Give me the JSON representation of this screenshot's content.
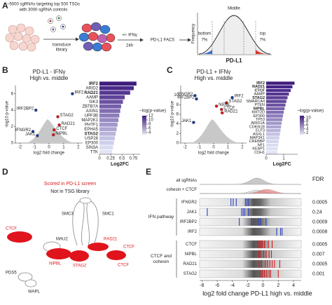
{
  "panel_labels": [
    "A",
    "B",
    "C",
    "D",
    "E"
  ],
  "panel_a": {
    "library_lines": [
      "~5000 sgRNAs targeting top 500 TSGs",
      "with 3000 sgRNA controls"
    ],
    "transduce": [
      "transduce",
      "library"
    ],
    "treatment": "+/- IFNγ",
    "time": "24h",
    "sort": "PD-L1 FACS",
    "y_label": "Frequency",
    "middle": "Middle",
    "bottom": "bottom",
    "bottom_pct": "7%",
    "top": "top",
    "top_pct": "7%",
    "x_label": "PD-L1"
  },
  "chart_data": [
    {
      "type": "scatter",
      "title": "PD-L1 - IFNγ",
      "subtitle": "High vs. middle",
      "x_label": "log2 fold change",
      "y_label": "-log10 p-value",
      "xlim": [
        -2.3,
        2.3
      ],
      "xticks": [
        -2,
        -1,
        0,
        1,
        2
      ],
      "ylim": [
        0,
        7
      ],
      "yticks": [
        0,
        2,
        4,
        6
      ],
      "points": [
        {
          "label": "IRF2",
          "x": 1.6,
          "y": 6.0,
          "color": "#1d3c96"
        },
        {
          "label": "IRF2BP2",
          "x": -0.9,
          "y": 4.0,
          "color": "#1d3c96"
        },
        {
          "label": "STAG2",
          "x": 0.6,
          "y": 3.2,
          "color": "#d7191c"
        },
        {
          "label": "RAD21",
          "x": 0.7,
          "y": 2.2,
          "color": "#d7191c"
        },
        {
          "label": "CTCF",
          "x": 0.35,
          "y": 1.6,
          "color": "#d7191c"
        },
        {
          "label": "IFNGR2",
          "x": -1.1,
          "y": 1.4,
          "color": "#1d3c96"
        },
        {
          "label": "JAK1",
          "x": -0.8,
          "y": 0.9,
          "color": "#1d3c96"
        },
        {
          "label": "NIPBL",
          "x": 0.3,
          "y": 1.0,
          "color": "#d7191c"
        }
      ]
    },
    {
      "type": "hbar",
      "x_label": "Log2FC",
      "xlim": [
        0,
        0.9
      ],
      "xticks": [
        0,
        0.25,
        0.5,
        0.75
      ],
      "categories": [
        "IRF2",
        "ARID2",
        "RAD21",
        "AAMP",
        "SIK3",
        "ZBTB7A",
        "AXIN1",
        "UPF3B",
        "MAP2K1",
        "PHTF1",
        "EPHA5",
        "STAG2",
        "USP28",
        "EP300",
        "SIN3A",
        "TTK"
      ],
      "values": [
        0.82,
        0.76,
        0.68,
        0.56,
        0.52,
        0.48,
        0.46,
        0.44,
        0.42,
        0.4,
        0.38,
        0.36,
        0.34,
        0.32,
        0.3,
        0.28
      ],
      "colors": [
        "#3f1d7d",
        "#4a2a8a",
        "#553792",
        "#60449a",
        "#6b52a2",
        "#7660aa",
        "#816eb2",
        "#8c7cba",
        "#978ac2",
        "#a298ca",
        "#ada6d2",
        "#b8b4da",
        "#c3c2e2",
        "#cecfe9",
        "#d9dcf0",
        "#e2e4f4"
      ],
      "label_colors": [
        "#1d3c96",
        "#222",
        "#d7191c",
        "#222",
        "#222",
        "#222",
        "#222",
        "#222",
        "#222",
        "#222",
        "#222",
        "#d7191c",
        "#222",
        "#222",
        "#222",
        "#222"
      ],
      "colorbar": {
        "title": "−log(p-value)",
        "lim": [
          3,
          12
        ],
        "ticks": [
          12,
          10,
          8,
          6,
          4
        ]
      }
    },
    {
      "type": "scatter",
      "title": "PD-L1 + IFNγ",
      "subtitle": "High vs. middle",
      "x_label": "log2 fold change",
      "y_label": "-log10 p-value",
      "xlim": [
        -2.3,
        2.3
      ],
      "xticks": [
        -2,
        -1,
        0,
        1,
        2
      ],
      "ylim": [
        0,
        12
      ],
      "yticks": [
        0,
        2,
        4,
        6,
        8,
        10
      ],
      "points": [
        {
          "label": "IFNGR2",
          "x": -1.3,
          "y": 9.9,
          "color": "#1d3c96"
        },
        {
          "label": "IRF2BP2",
          "x": -1.2,
          "y": 9.2,
          "color": "#1d3c96"
        },
        {
          "label": "IRF2",
          "x": 1.3,
          "y": 9.5,
          "color": "#1d3c96"
        },
        {
          "label": "STAG2",
          "x": 0.9,
          "y": 8.4,
          "color": "#d7191c"
        },
        {
          "label": "NIPBL",
          "x": 0.2,
          "y": 7.7,
          "color": "#d7191c"
        },
        {
          "label": "CTCF",
          "x": 0.55,
          "y": 7.0,
          "color": "#d7191c"
        },
        {
          "label": "RAD21",
          "x": 0.6,
          "y": 6.3,
          "color": "#d7191c"
        },
        {
          "label": "JAK1",
          "x": -1.4,
          "y": 4.3,
          "color": "#1d3c96"
        }
      ]
    },
    {
      "type": "hbar",
      "x_label": "Log2FC",
      "xlim": [
        0,
        1.8
      ],
      "xticks": [
        0,
        1
      ],
      "categories": [
        "IRF2",
        "RAD21",
        "CTCF",
        "AAMP",
        "STAG2",
        "SMARCA4",
        "PTEN",
        "NIPBL",
        "KMT2D",
        "EP300",
        "TP53",
        "ARID1A",
        "CDKN1B",
        "ELF3",
        "ASXL1",
        "MAP3K1",
        "CREBBP",
        "NF1",
        "KEAP1",
        "CDH1"
      ],
      "values": [
        1.62,
        1.5,
        1.4,
        1.3,
        1.22,
        1.15,
        1.1,
        1.05,
        1.0,
        0.96,
        0.92,
        0.88,
        0.85,
        0.82,
        0.78,
        0.75,
        0.72,
        0.69,
        0.66,
        0.63
      ],
      "colors": [
        "#3f1d7d",
        "#46258a",
        "#4e2d8e",
        "#553792",
        "#5c3e96",
        "#63469b",
        "#6b52a2",
        "#7660aa",
        "#816eb2",
        "#8c7cba",
        "#978ac2",
        "#a298ca",
        "#ada6d2",
        "#b8b4da",
        "#c3c2e2",
        "#cecfe9",
        "#d4d6ec",
        "#d9dcf0",
        "#dee0f2",
        "#e2e4f4"
      ],
      "label_colors": [
        "#1d3c96",
        "#d7191c",
        "#d7191c",
        "#222",
        "#d7191c",
        "#222",
        "#222",
        "#d7191c",
        "#222",
        "#222",
        "#222",
        "#222",
        "#222",
        "#222",
        "#222",
        "#222",
        "#222",
        "#222",
        "#222",
        "#222"
      ],
      "colorbar": {
        "title": "−log(p-value)",
        "lim": [
          1,
          11
        ],
        "ticks": [
          10,
          8,
          6,
          4,
          2
        ]
      }
    },
    {
      "type": "strip",
      "x_label": "log2 fold change PD-L1 high vs. middle",
      "fdr_title": "FDR",
      "xlim": [
        -8.3,
        5
      ],
      "xticks": [
        -8,
        -6,
        -4,
        -2,
        0,
        2,
        4
      ],
      "groups": [
        {
          "lines": [
            "IFN pathway"
          ]
        },
        {
          "lines": [
            "CTCF and",
            "cohesin"
          ]
        }
      ],
      "rows": [
        {
          "name": "all sgRNAs"
        },
        {
          "name": "cohesin + CTCF"
        },
        {
          "name": "IFNGR2",
          "color": "#2b3fbf",
          "values": [
            -4.2,
            -3.9,
            -3.5,
            -2.3,
            -2.1,
            -1.9
          ],
          "fdr": 0.0005
        },
        {
          "name": "JAK1",
          "color": "#2b3fbf",
          "values": [
            -7.3,
            -2.8,
            -2.6,
            -2.4,
            -1.9
          ],
          "fdr": 0.24
        },
        {
          "name": "IRF2BP2",
          "color": "#2b3fbf",
          "values": [
            -3.1,
            -1.5,
            -0.6,
            -0.3,
            0.4
          ],
          "fdr": 0.0009
        },
        {
          "name": "IRF2",
          "color": "#2b3fbf",
          "values": [
            1.8,
            2.3,
            2.5
          ],
          "fdr": 0.0008
        },
        {
          "name": "CTCF",
          "color": "#d7191c",
          "values": [
            -0.7,
            -0.5,
            -0.3,
            -0.1,
            0.2,
            0.7,
            1.2
          ],
          "fdr": 0.0005
        },
        {
          "name": "NIPBL",
          "color": "#d7191c",
          "values": [
            -0.6,
            -0.4,
            0.1,
            0.4,
            0.8,
            1.1
          ],
          "fdr": 0.007
        },
        {
          "name": "RAD21",
          "color": "#d7191c",
          "values": [
            -0.5,
            -0.2,
            0.3,
            0.6,
            0.9,
            1.2,
            1.5,
            2.2
          ],
          "fdr": 0.0005
        },
        {
          "name": "STAG2",
          "color": "#d7191c",
          "values": [
            -0.4,
            -0.1,
            0.2,
            0.5,
            0.8,
            1.0,
            2.0
          ],
          "fdr": 0.001
        }
      ]
    }
  ],
  "panel_d": {
    "legend": [
      "Scored in PD-L1 screen",
      "Not in TSG library"
    ],
    "labels": [
      "SMC3",
      "SMC1",
      "MAU2",
      "CTCF",
      "NIPBL",
      "STAG2",
      "RAD21",
      "CTCF",
      "PDS5",
      "WAPL",
      "CTCF"
    ]
  }
}
